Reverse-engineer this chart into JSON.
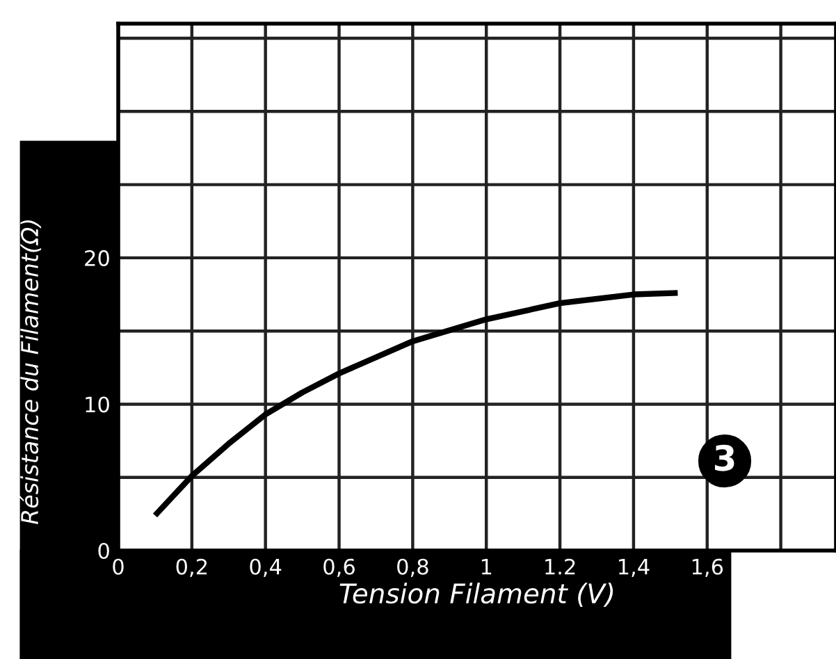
{
  "chart_data": {
    "type": "line",
    "xlabel": "Tension Filament (V)",
    "ylabel": "Résistance du Filament(Ω)",
    "x": [
      0.1,
      0.2,
      0.3,
      0.4,
      0.5,
      0.6,
      0.8,
      1.0,
      1.2,
      1.4,
      1.52
    ],
    "series": [
      {
        "color": "#000000",
        "values": [
          2.4,
          5.1,
          7.3,
          9.3,
          10.8,
          12.1,
          14.3,
          15.8,
          16.9,
          17.5,
          17.6
        ]
      }
    ],
    "xlim": [
      0,
      1.95
    ],
    "ylim": [
      0,
      36
    ],
    "xticks": [
      0,
      {
        "value": 0.2,
        "label": "0,2"
      },
      {
        "value": 0.4,
        "label": "0,4"
      },
      {
        "value": 0.6,
        "label": "0,6"
      },
      {
        "value": 0.8,
        "label": "0,8"
      },
      1,
      1.2,
      {
        "value": 1.4,
        "label": "1,4"
      },
      {
        "value": 1.6,
        "label": "1,6"
      },
      {
        "value": 1.8,
        "label": null
      }
    ],
    "yticks": [
      0,
      {
        "value": 5,
        "label": null
      },
      10,
      {
        "value": 15,
        "label": null
      },
      20,
      {
        "value": 25,
        "label": null
      },
      {
        "value": 30,
        "label": null
      },
      {
        "value": 35,
        "label": null
      }
    ],
    "grid": true,
    "marker": "none",
    "line_style": "solid",
    "annotations": [
      "3"
    ]
  }
}
